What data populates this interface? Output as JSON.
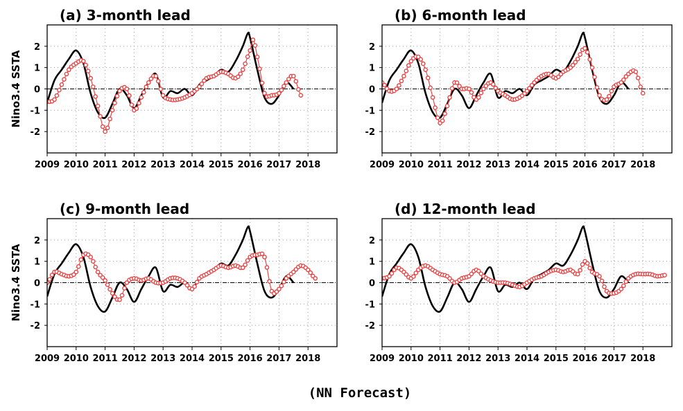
{
  "figure": {
    "caption": "(NN Forecast)",
    "colors": {
      "observed": "#000000",
      "forecast": "#e84545",
      "grid": "#9a9a9a"
    }
  },
  "chart_data": [
    {
      "type": "line",
      "title": "(a) 3-month lead",
      "ylabel": "Nino3.4 SSTA",
      "xlim": [
        2009,
        2019
      ],
      "ylim": [
        -3,
        3
      ],
      "xticks": [
        "2009",
        "2010",
        "2011",
        "2012",
        "2013",
        "2014",
        "2015",
        "2016",
        "2017",
        "2018"
      ],
      "yticks": [
        "2",
        "1",
        "0",
        "-1",
        "-2"
      ],
      "reference_line": 0,
      "grid": true,
      "series": [
        {
          "style": "solid line",
          "x": [
            2009.0,
            2009.25,
            2009.5,
            2009.75,
            2010.0,
            2010.25,
            2010.5,
            2010.75,
            2011.0,
            2011.25,
            2011.5,
            2011.75,
            2012.0,
            2012.25,
            2012.5,
            2012.75,
            2013.0,
            2013.25,
            2013.5,
            2013.75,
            2014.0,
            2014.25,
            2014.5,
            2014.75,
            2015.0,
            2015.25,
            2015.5,
            2015.75,
            2015.92,
            2016.0,
            2016.25,
            2016.5,
            2016.75,
            2017.0,
            2017.25,
            2017.5
          ],
          "y": [
            -0.65,
            0.4,
            0.9,
            1.4,
            1.8,
            1.2,
            -0.2,
            -1.1,
            -1.35,
            -0.7,
            0.0,
            -0.3,
            -0.9,
            -0.3,
            0.3,
            0.7,
            -0.4,
            -0.1,
            -0.2,
            0.0,
            -0.3,
            0.2,
            0.4,
            0.6,
            0.9,
            0.8,
            1.3,
            2.0,
            2.6,
            2.4,
            0.9,
            -0.4,
            -0.7,
            -0.3,
            0.3,
            0.0
          ]
        },
        {
          "style": "circle markers",
          "x": [
            2009.0,
            2009.25,
            2009.5,
            2009.75,
            2010.0,
            2010.25,
            2010.5,
            2010.75,
            2011.0,
            2011.25,
            2011.5,
            2011.75,
            2012.0,
            2012.25,
            2012.5,
            2012.75,
            2013.0,
            2013.25,
            2013.5,
            2013.75,
            2014.0,
            2014.25,
            2014.5,
            2014.75,
            2015.0,
            2015.25,
            2015.5,
            2015.75,
            2016.0,
            2016.1,
            2016.25,
            2016.5,
            2016.75,
            2017.0,
            2017.25,
            2017.5,
            2017.75
          ],
          "y": [
            -0.6,
            -0.5,
            0.2,
            0.9,
            1.2,
            1.3,
            0.5,
            -0.8,
            -2.0,
            -1.0,
            -0.1,
            0.0,
            -1.0,
            -0.4,
            0.3,
            0.6,
            -0.3,
            -0.5,
            -0.5,
            -0.4,
            -0.2,
            0.1,
            0.5,
            0.6,
            0.8,
            0.7,
            0.5,
            0.9,
            1.8,
            2.3,
            1.5,
            -0.2,
            -0.3,
            -0.2,
            0.3,
            0.6,
            -0.3
          ]
        }
      ]
    },
    {
      "type": "line",
      "title": "(b) 6-month lead",
      "ylabel": "",
      "xlim": [
        2009,
        2019
      ],
      "ylim": [
        -3,
        3
      ],
      "xticks": [
        "2009",
        "2010",
        "2011",
        "2012",
        "2013",
        "2014",
        "2015",
        "2016",
        "2017",
        "2018"
      ],
      "yticks": [
        "2",
        "1",
        "0",
        "-1",
        "-2"
      ],
      "reference_line": 0,
      "grid": true,
      "series": [
        {
          "style": "solid line",
          "x": [
            2009.0,
            2009.25,
            2009.5,
            2009.75,
            2010.0,
            2010.25,
            2010.5,
            2010.75,
            2011.0,
            2011.25,
            2011.5,
            2011.75,
            2012.0,
            2012.25,
            2012.5,
            2012.75,
            2013.0,
            2013.25,
            2013.5,
            2013.75,
            2014.0,
            2014.25,
            2014.5,
            2014.75,
            2015.0,
            2015.25,
            2015.5,
            2015.75,
            2015.92,
            2016.0,
            2016.25,
            2016.5,
            2016.75,
            2017.0,
            2017.25,
            2017.5
          ],
          "y": [
            -0.65,
            0.4,
            0.9,
            1.4,
            1.8,
            1.2,
            -0.2,
            -1.1,
            -1.35,
            -0.7,
            0.0,
            -0.3,
            -0.9,
            -0.3,
            0.3,
            0.7,
            -0.4,
            -0.1,
            -0.2,
            0.0,
            -0.3,
            0.2,
            0.4,
            0.6,
            0.9,
            0.8,
            1.3,
            2.0,
            2.6,
            2.4,
            0.9,
            -0.4,
            -0.7,
            -0.3,
            0.3,
            0.0
          ]
        },
        {
          "style": "circle markers",
          "x": [
            2009.0,
            2009.25,
            2009.5,
            2009.75,
            2010.0,
            2010.25,
            2010.5,
            2010.75,
            2011.0,
            2011.25,
            2011.5,
            2011.75,
            2012.0,
            2012.25,
            2012.5,
            2012.75,
            2013.0,
            2013.25,
            2013.5,
            2013.75,
            2014.0,
            2014.25,
            2014.5,
            2014.75,
            2015.0,
            2015.25,
            2015.5,
            2015.75,
            2016.0,
            2016.25,
            2016.5,
            2016.75,
            2017.0,
            2017.25,
            2017.5,
            2017.75,
            2018.0
          ],
          "y": [
            0.3,
            -0.1,
            0.0,
            0.6,
            1.3,
            1.5,
            0.9,
            -0.4,
            -1.6,
            -0.8,
            0.3,
            0.0,
            0.0,
            -0.5,
            0.0,
            0.3,
            -0.1,
            -0.3,
            -0.5,
            -0.4,
            -0.1,
            0.3,
            0.6,
            0.7,
            0.5,
            0.8,
            1.0,
            1.4,
            1.9,
            1.0,
            -0.3,
            -0.5,
            0.1,
            0.3,
            0.7,
            0.8,
            -0.2
          ]
        }
      ]
    },
    {
      "type": "line",
      "title": "(c) 9-month lead",
      "ylabel": "Nino3.4 SSTA",
      "xlim": [
        2009,
        2019
      ],
      "ylim": [
        -3,
        3
      ],
      "xticks": [
        "2009",
        "2010",
        "2011",
        "2012",
        "2013",
        "2014",
        "2015",
        "2016",
        "2017",
        "2018"
      ],
      "yticks": [
        "2",
        "1",
        "0",
        "-1",
        "-2"
      ],
      "reference_line": 0,
      "grid": true,
      "series": [
        {
          "style": "solid line",
          "x": [
            2009.0,
            2009.25,
            2009.5,
            2009.75,
            2010.0,
            2010.25,
            2010.5,
            2010.75,
            2011.0,
            2011.25,
            2011.5,
            2011.75,
            2012.0,
            2012.25,
            2012.5,
            2012.75,
            2013.0,
            2013.25,
            2013.5,
            2013.75,
            2014.0,
            2014.25,
            2014.5,
            2014.75,
            2015.0,
            2015.25,
            2015.5,
            2015.75,
            2015.92,
            2016.0,
            2016.25,
            2016.5,
            2016.75,
            2017.0,
            2017.25,
            2017.5
          ],
          "y": [
            -0.65,
            0.4,
            0.9,
            1.4,
            1.8,
            1.2,
            -0.2,
            -1.1,
            -1.35,
            -0.7,
            0.0,
            -0.3,
            -0.9,
            -0.3,
            0.3,
            0.7,
            -0.4,
            -0.1,
            -0.2,
            0.0,
            -0.3,
            0.2,
            0.4,
            0.6,
            0.9,
            0.8,
            1.3,
            2.0,
            2.6,
            2.4,
            0.9,
            -0.4,
            -0.7,
            -0.3,
            0.3,
            0.0
          ]
        },
        {
          "style": "circle markers",
          "x": [
            2009.0,
            2009.25,
            2009.5,
            2009.75,
            2010.0,
            2010.25,
            2010.5,
            2010.75,
            2011.0,
            2011.25,
            2011.5,
            2011.75,
            2012.0,
            2012.25,
            2012.5,
            2012.75,
            2013.0,
            2013.25,
            2013.5,
            2013.75,
            2014.0,
            2014.25,
            2014.5,
            2014.75,
            2015.0,
            2015.25,
            2015.5,
            2015.75,
            2016.0,
            2016.25,
            2016.5,
            2016.75,
            2017.0,
            2017.25,
            2017.5,
            2017.75,
            2018.0,
            2018.25
          ],
          "y": [
            0.0,
            0.5,
            0.4,
            0.3,
            0.5,
            1.3,
            1.2,
            0.5,
            0.1,
            -0.5,
            -0.8,
            0.0,
            0.2,
            0.1,
            0.2,
            0.0,
            0.0,
            0.2,
            0.2,
            0.0,
            -0.3,
            0.2,
            0.4,
            0.6,
            0.8,
            0.7,
            0.8,
            0.7,
            1.2,
            1.3,
            1.2,
            -0.4,
            -0.3,
            0.2,
            0.5,
            0.8,
            0.6,
            0.2
          ]
        }
      ]
    },
    {
      "type": "line",
      "title": "(d) 12-month lead",
      "ylabel": "",
      "xlim": [
        2009,
        2019
      ],
      "ylim": [
        -3,
        3
      ],
      "xticks": [
        "2009",
        "2010",
        "2011",
        "2012",
        "2013",
        "2014",
        "2015",
        "2016",
        "2017",
        "2018"
      ],
      "yticks": [
        "2",
        "1",
        "0",
        "-1",
        "-2"
      ],
      "reference_line": 0,
      "grid": true,
      "series": [
        {
          "style": "solid line",
          "x": [
            2009.0,
            2009.25,
            2009.5,
            2009.75,
            2010.0,
            2010.25,
            2010.5,
            2010.75,
            2011.0,
            2011.25,
            2011.5,
            2011.75,
            2012.0,
            2012.25,
            2012.5,
            2012.75,
            2013.0,
            2013.25,
            2013.5,
            2013.75,
            2014.0,
            2014.25,
            2014.5,
            2014.75,
            2015.0,
            2015.25,
            2015.5,
            2015.75,
            2015.92,
            2016.0,
            2016.25,
            2016.5,
            2016.75,
            2017.0,
            2017.25,
            2017.5
          ],
          "y": [
            -0.65,
            0.4,
            0.9,
            1.4,
            1.8,
            1.2,
            -0.2,
            -1.1,
            -1.35,
            -0.7,
            0.0,
            -0.3,
            -0.9,
            -0.3,
            0.3,
            0.7,
            -0.4,
            -0.1,
            -0.2,
            0.0,
            -0.3,
            0.2,
            0.4,
            0.6,
            0.9,
            0.8,
            1.3,
            2.0,
            2.6,
            2.4,
            0.9,
            -0.4,
            -0.7,
            -0.3,
            0.3,
            0.0
          ]
        },
        {
          "style": "circle markers",
          "x": [
            2009.0,
            2009.25,
            2009.5,
            2009.75,
            2010.0,
            2010.25,
            2010.5,
            2010.75,
            2011.0,
            2011.25,
            2011.5,
            2011.75,
            2012.0,
            2012.25,
            2012.5,
            2012.75,
            2013.0,
            2013.25,
            2013.5,
            2013.75,
            2014.0,
            2014.25,
            2014.5,
            2014.75,
            2015.0,
            2015.25,
            2015.5,
            2015.75,
            2016.0,
            2016.25,
            2016.5,
            2016.75,
            2017.0,
            2017.25,
            2017.5,
            2017.75,
            2018.0,
            2018.25,
            2018.5,
            2018.75
          ],
          "y": [
            0.2,
            0.3,
            0.7,
            0.5,
            0.2,
            0.6,
            0.8,
            0.6,
            0.4,
            0.3,
            0.0,
            0.2,
            0.3,
            0.6,
            0.3,
            0.1,
            0.0,
            0.0,
            -0.1,
            -0.2,
            0.0,
            0.2,
            0.3,
            0.5,
            0.6,
            0.5,
            0.6,
            0.4,
            1.0,
            0.5,
            0.3,
            -0.4,
            -0.5,
            -0.3,
            0.2,
            0.4,
            0.4,
            0.4,
            0.3,
            0.35
          ]
        }
      ]
    }
  ]
}
